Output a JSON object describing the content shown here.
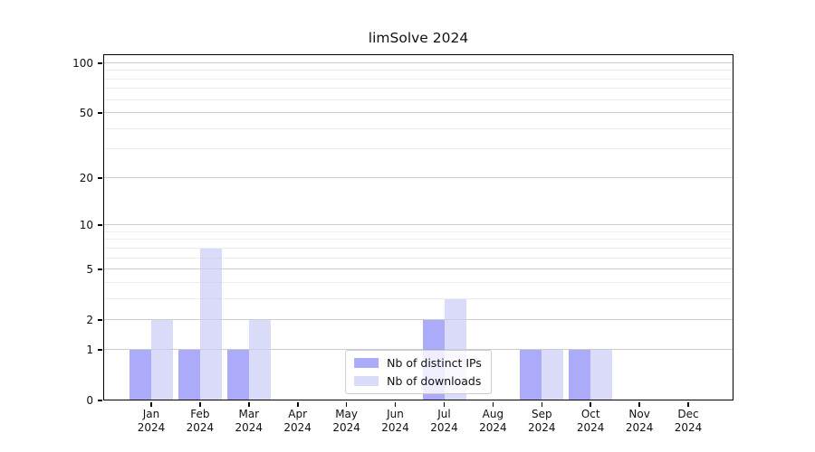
{
  "chart_data": {
    "type": "bar",
    "title": "limSolve 2024",
    "categories": [
      "Jan",
      "Feb",
      "Mar",
      "Apr",
      "May",
      "Jun",
      "Jul",
      "Aug",
      "Sep",
      "Oct",
      "Nov",
      "Dec"
    ],
    "x_year": "2024",
    "series": [
      {
        "name": "Nb of distinct IPs",
        "color": "rgba(150,150,248,0.8)",
        "values": [
          1,
          1,
          1,
          0,
          0,
          0,
          2,
          0,
          1,
          1,
          0,
          0
        ]
      },
      {
        "name": "Nb of downloads",
        "color": "rgba(200,200,246,0.68)",
        "values": [
          2,
          7,
          2,
          0,
          0,
          0,
          3,
          0,
          1,
          1,
          0,
          0
        ]
      }
    ],
    "yscale": "log1p",
    "ylim": [
      0,
      113
    ],
    "yticks": [
      0,
      1,
      2,
      5,
      10,
      20,
      50,
      100
    ],
    "minor_gridlines": [
      3,
      4,
      6,
      7,
      8,
      9,
      30,
      40,
      60,
      70,
      80,
      90
    ],
    "grid": true,
    "legend_position": "lower center"
  }
}
